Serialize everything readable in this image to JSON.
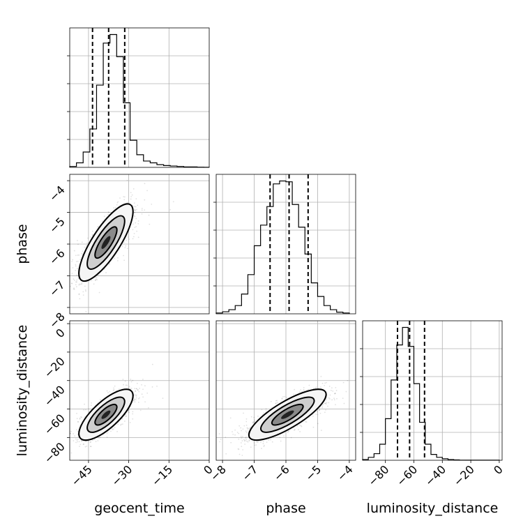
{
  "chart_data": {
    "type": "corner",
    "parameters": [
      "geocent_time",
      "phase",
      "luminosity_distance"
    ],
    "grid": true,
    "quantiles": [
      0.16,
      0.5,
      0.84
    ],
    "axes": {
      "geocent_time": {
        "label": "geocent_time",
        "range": [
          -52,
          0
        ],
        "ticks": [
          -45,
          -30,
          -15,
          0
        ],
        "tick_labels": [
          "−45",
          "−30",
          "−15",
          "0"
        ]
      },
      "phase": {
        "label": "phase",
        "range": [
          -8.2,
          -3.8
        ],
        "ticks": [
          -8,
          -7,
          -6,
          -5,
          -4
        ],
        "tick_labels": [
          "−8",
          "−7",
          "−6",
          "−5",
          "−4"
        ]
      },
      "luminosity_distance": {
        "label": "luminosity_distance",
        "range": [
          -96,
          2
        ],
        "ticks": [
          -80,
          -60,
          -40,
          -20,
          0
        ],
        "tick_labels": [
          "−80",
          "−60",
          "−40",
          "−20",
          "0"
        ]
      }
    },
    "histograms": {
      "geocent_time": {
        "bin_edges": [
          -52,
          -49.5,
          -47,
          -44.5,
          -42,
          -39.5,
          -37,
          -34.5,
          -32,
          -29.5,
          -27,
          -24.5,
          -22,
          -19.5,
          -17,
          -14.5,
          -12,
          -9.5,
          -7,
          -4.5,
          -2,
          0
        ],
        "counts": [
          0.2,
          1.0,
          3.4,
          8.5,
          18.2,
          27.5,
          29.4,
          24.5,
          14.3,
          6.0,
          2.8,
          1.4,
          1.0,
          0.6,
          0.4,
          0.3,
          0.2,
          0.1,
          0.1,
          0.05,
          0.02
        ],
        "quantile_values": [
          -43.5,
          -37.5,
          -31.5
        ]
      },
      "phase": {
        "bin_edges": [
          -8.2,
          -8.0,
          -7.8,
          -7.6,
          -7.4,
          -7.2,
          -7.0,
          -6.8,
          -6.6,
          -6.4,
          -6.2,
          -6.0,
          -5.8,
          -5.6,
          -5.4,
          -5.2,
          -5.0,
          -4.8,
          -4.6,
          -4.4,
          -4.2,
          -4.0
        ],
        "counts": [
          0.2,
          0.5,
          1.0,
          2.0,
          4.8,
          9.5,
          16.5,
          21.5,
          26.0,
          31.5,
          32.2,
          32.0,
          26.5,
          21.0,
          14.5,
          7.5,
          4.2,
          2.0,
          1.0,
          0.4,
          0.2
        ],
        "quantile_values": [
          -6.5,
          -5.9,
          -5.3
        ]
      },
      "luminosity_distance": {
        "bin_edges": [
          -96,
          -92,
          -88,
          -84,
          -80,
          -76,
          -72,
          -68,
          -64,
          -60,
          -56,
          -52,
          -48,
          -44,
          -40,
          -36,
          -32,
          -28,
          -24,
          -20,
          -16,
          -12,
          -8,
          -4,
          0
        ],
        "counts": [
          0.1,
          0.4,
          0.9,
          2.2,
          5.7,
          11.0,
          15.8,
          18.2,
          15.6,
          10.5,
          5.2,
          2.2,
          0.8,
          0.4,
          0.2,
          0.1,
          0.05,
          0.02,
          0.01,
          0.01,
          0.01,
          0.01,
          0.01,
          0.01
        ],
        "quantile_values": [
          -71.5,
          -63,
          -52.5
        ]
      }
    },
    "posterior_summary": {
      "geocent_time_phase": {
        "mean": [
          -38.5,
          -5.95
        ],
        "sigma": [
          4.8,
          0.58
        ],
        "corr": 0.8
      },
      "geocent_time_luminosity_distance": {
        "mean": [
          -38.5,
          -64
        ],
        "sigma": [
          4.8,
          8.5
        ],
        "corr": 0.75
      },
      "phase_luminosity_distance": {
        "mean": [
          -5.95,
          -64
        ],
        "sigma": [
          0.58,
          8.5
        ],
        "corr": 0.8
      }
    }
  }
}
